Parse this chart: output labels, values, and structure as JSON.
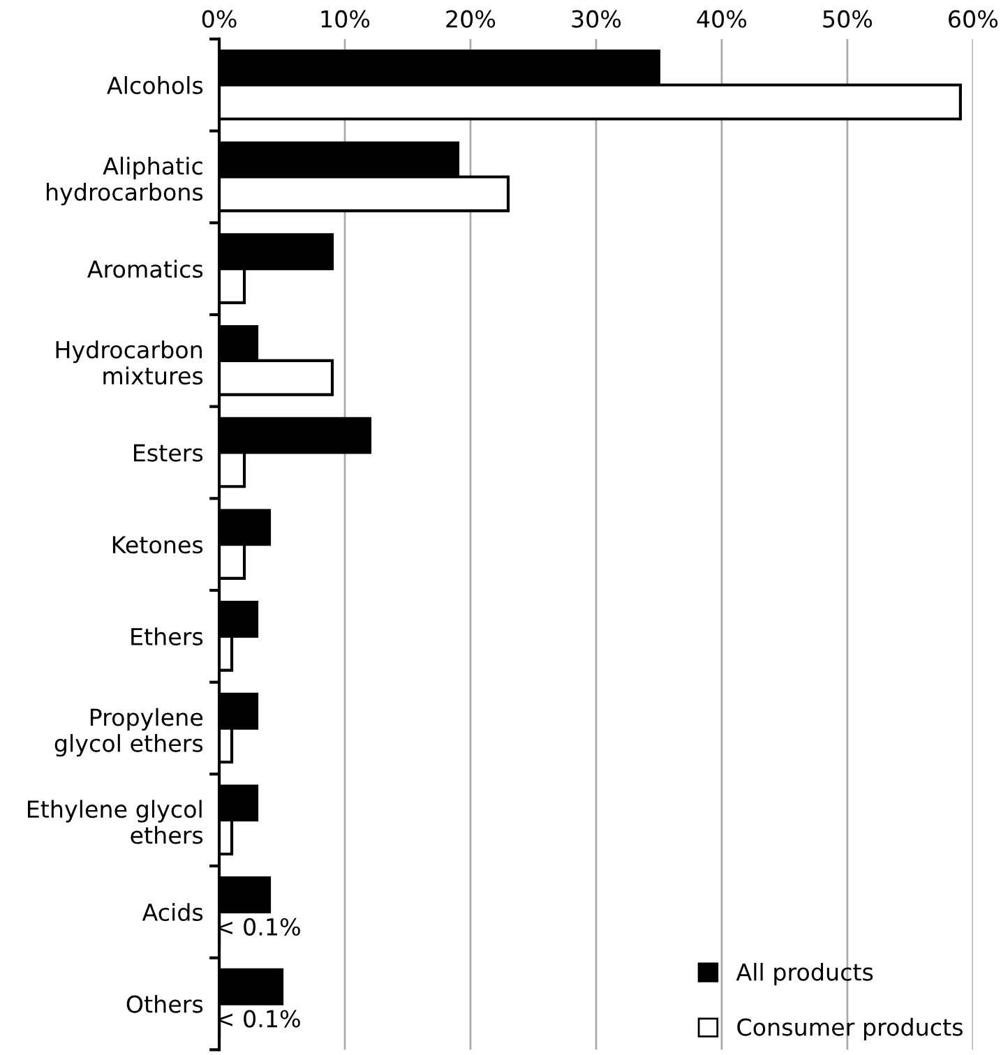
{
  "chart_data": {
    "type": "bar",
    "orientation": "horizontal",
    "categories": [
      "Alcohols",
      "Aliphatic\nhydrocarbons",
      "Aromatics",
      "Hydrocarbon\nmixtures",
      "Esters",
      "Ketones",
      "Ethers",
      "Propylene\nglycol ethers",
      "Ethylene glycol\nethers",
      "Acids",
      "Others"
    ],
    "series": [
      {
        "name": "All products",
        "color": "#000000",
        "values": [
          35,
          19,
          9,
          3,
          12,
          4,
          3,
          3,
          3,
          4,
          5
        ]
      },
      {
        "name": "Consumer products",
        "color": "#ffffff",
        "values": [
          59,
          23,
          2,
          9,
          2,
          2,
          1,
          1,
          1,
          0,
          0
        ],
        "value_labels": [
          null,
          null,
          null,
          null,
          null,
          null,
          null,
          null,
          null,
          "< 0.1%",
          "< 0.1%"
        ]
      }
    ],
    "xlim": [
      0,
      60
    ],
    "xticks": [
      {
        "value": 0,
        "label": "0%"
      },
      {
        "value": 10,
        "label": "10%"
      },
      {
        "value": 20,
        "label": "20%"
      },
      {
        "value": 30,
        "label": "30%"
      },
      {
        "value": 40,
        "label": "40%"
      },
      {
        "value": 50,
        "label": "50%"
      },
      {
        "value": 60,
        "label": "60%"
      }
    ],
    "grid": "x",
    "legend": "bottom right"
  }
}
